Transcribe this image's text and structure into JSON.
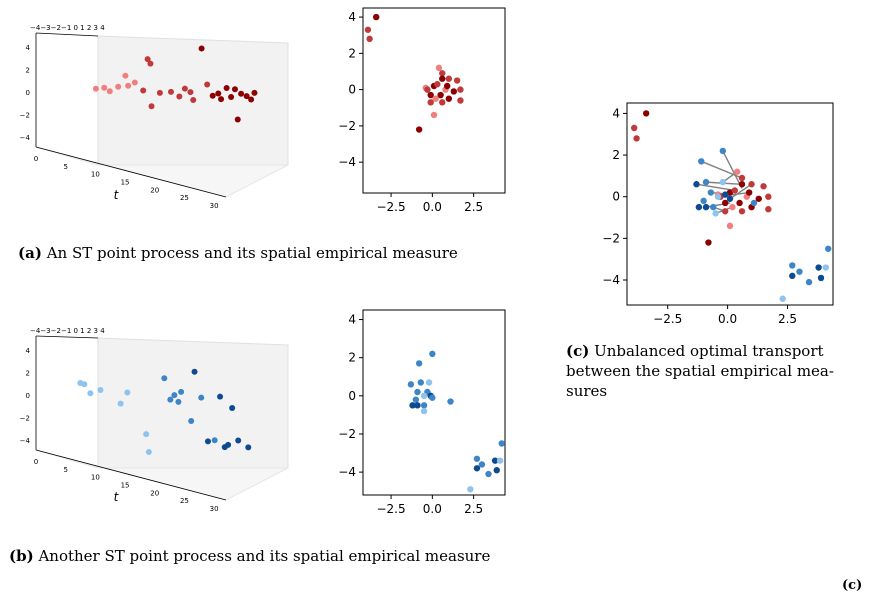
{
  "colors": {
    "red_light": "#f08080",
    "red_mid": "#c0393b",
    "red_dark": "#8b0000",
    "blue_light": "#8ec3ef",
    "blue_mid": "#3e85c6",
    "blue_dark": "#0d4a8f",
    "transport_line": "#808080"
  },
  "captions": {
    "a_tag": "(a)",
    "a_text": "An ST point process and its spatial empirical measure",
    "b_tag": "(b)",
    "b_text": "Another ST point process and its spatial empirical measure",
    "c_tag": "(c)",
    "c_line1": "Unbalanced optimal transport",
    "c_line2": "between the spatial empirical mea-",
    "c_line3": "sures",
    "corner_fragment": "(c)"
  },
  "chart_data": [
    {
      "id": "a3d",
      "type": "scatter",
      "projection": "3d",
      "xlabel": "t",
      "x_ticks": [
        "0",
        "5",
        "10",
        "15",
        "20",
        "25",
        "30"
      ],
      "z_ticks": [
        "4",
        "2",
        "0",
        "−2",
        "−4"
      ],
      "y_tick_row": "−4−3−2−1 0 1 2 3 4",
      "xlim": [
        0,
        32
      ],
      "zlim": [
        -5,
        5
      ],
      "points": [
        {
          "t": 2.5,
          "z": 0.3,
          "c": "red_light"
        },
        {
          "t": 4,
          "z": 0.4,
          "c": "red_light"
        },
        {
          "t": 5,
          "z": 0.1,
          "c": "red_light"
        },
        {
          "t": 6.5,
          "z": 0.5,
          "c": "red_light"
        },
        {
          "t": 7.8,
          "z": 1.5,
          "c": "red_light"
        },
        {
          "t": 8.3,
          "z": 0.6,
          "c": "red_light"
        },
        {
          "t": 9.5,
          "z": 0.9,
          "c": "red_light"
        },
        {
          "t": 11,
          "z": 0.2,
          "c": "red_mid"
        },
        {
          "t": 11.8,
          "z": 3.0,
          "c": "red_mid"
        },
        {
          "t": 12.3,
          "z": 2.6,
          "c": "red_mid"
        },
        {
          "t": 12.5,
          "z": -1.2,
          "c": "red_mid"
        },
        {
          "t": 14,
          "z": 0.0,
          "c": "red_mid"
        },
        {
          "t": 16,
          "z": 0.1,
          "c": "red_mid"
        },
        {
          "t": 17.5,
          "z": -0.3,
          "c": "red_mid"
        },
        {
          "t": 18.5,
          "z": 0.4,
          "c": "red_mid"
        },
        {
          "t": 19.5,
          "z": 0.1,
          "c": "red_mid"
        },
        {
          "t": 20,
          "z": -0.6,
          "c": "red_mid"
        },
        {
          "t": 21.5,
          "z": 4.0,
          "c": "red_dark"
        },
        {
          "t": 22.5,
          "z": 0.8,
          "c": "red_mid"
        },
        {
          "t": 23.5,
          "z": -0.2,
          "c": "red_dark"
        },
        {
          "t": 24.5,
          "z": 0.0,
          "c": "red_dark"
        },
        {
          "t": 25,
          "z": -0.5,
          "c": "red_dark"
        },
        {
          "t": 26,
          "z": 0.5,
          "c": "red_dark"
        },
        {
          "t": 26.8,
          "z": -0.3,
          "c": "red_dark"
        },
        {
          "t": 27.5,
          "z": 0.4,
          "c": "red_dark"
        },
        {
          "t": 28,
          "z": -2.3,
          "c": "red_dark"
        },
        {
          "t": 28.6,
          "z": 0.0,
          "c": "red_dark"
        },
        {
          "t": 29.6,
          "z": -0.2,
          "c": "red_dark"
        },
        {
          "t": 30.4,
          "z": -0.5,
          "c": "red_dark"
        },
        {
          "t": 31,
          "z": 0.1,
          "c": "red_dark"
        }
      ]
    },
    {
      "id": "a2d",
      "type": "scatter",
      "x_ticks": [
        -2.5,
        0.0,
        2.5
      ],
      "y_ticks": [
        4,
        2,
        0,
        -2,
        -4
      ],
      "xlim": [
        -4.2,
        4.4
      ],
      "ylim": [
        -5.7,
        4.5
      ],
      "points": [
        {
          "x": -3.9,
          "y": 3.3,
          "c": "red_mid"
        },
        {
          "x": -3.8,
          "y": 2.8,
          "c": "red_mid"
        },
        {
          "x": -3.4,
          "y": 4.0,
          "c": "red_dark"
        },
        {
          "x": 0.4,
          "y": 1.2,
          "c": "red_light"
        },
        {
          "x": 0.6,
          "y": 0.9,
          "c": "red_mid"
        },
        {
          "x": 0.6,
          "y": 0.6,
          "c": "red_dark"
        },
        {
          "x": -0.4,
          "y": 0.1,
          "c": "red_light"
        },
        {
          "x": -0.3,
          "y": 0.0,
          "c": "red_mid"
        },
        {
          "x": 0.1,
          "y": 0.2,
          "c": "red_dark"
        },
        {
          "x": 0.3,
          "y": 0.3,
          "c": "red_mid"
        },
        {
          "x": 1.0,
          "y": 0.6,
          "c": "red_mid"
        },
        {
          "x": 1.5,
          "y": 0.5,
          "c": "red_mid"
        },
        {
          "x": 0.8,
          "y": 0.0,
          "c": "red_light"
        },
        {
          "x": 1.3,
          "y": -0.1,
          "c": "red_dark"
        },
        {
          "x": 1.7,
          "y": 0.0,
          "c": "red_mid"
        },
        {
          "x": 0.5,
          "y": -0.3,
          "c": "red_dark"
        },
        {
          "x": -0.1,
          "y": -0.3,
          "c": "red_dark"
        },
        {
          "x": -0.1,
          "y": -0.7,
          "c": "red_mid"
        },
        {
          "x": 0.2,
          "y": -0.5,
          "c": "red_light"
        },
        {
          "x": 1.0,
          "y": -0.5,
          "c": "red_dark"
        },
        {
          "x": 0.6,
          "y": -0.7,
          "c": "red_mid"
        },
        {
          "x": 1.7,
          "y": -0.6,
          "c": "red_mid"
        },
        {
          "x": 0.1,
          "y": -1.4,
          "c": "red_light"
        },
        {
          "x": -0.8,
          "y": -2.2,
          "c": "red_dark"
        },
        {
          "x": 0.9,
          "y": 0.2,
          "c": "red_dark"
        }
      ]
    },
    {
      "id": "b3d",
      "type": "scatter",
      "projection": "3d",
      "xlabel": "t",
      "x_ticks": [
        "0",
        "5",
        "10",
        "15",
        "20",
        "25",
        "30"
      ],
      "z_ticks": [
        "4",
        "2",
        "0",
        "−2",
        "−4"
      ],
      "y_tick_row": "−4−3−2−1 0 1 2 3 4",
      "xlim": [
        0,
        32
      ],
      "zlim": [
        -5,
        5
      ],
      "points": [
        {
          "t": 6,
          "z": 1.1,
          "c": "blue_light"
        },
        {
          "t": 6.6,
          "z": 1.0,
          "c": "blue_light"
        },
        {
          "t": 7.5,
          "z": 0.2,
          "c": "blue_light"
        },
        {
          "t": 9,
          "z": 0.5,
          "c": "blue_light"
        },
        {
          "t": 12,
          "z": -0.7,
          "c": "blue_light"
        },
        {
          "t": 13,
          "z": 0.3,
          "c": "blue_light"
        },
        {
          "t": 15.8,
          "z": -3.4,
          "c": "blue_light"
        },
        {
          "t": 16.2,
          "z": -5.0,
          "c": "blue_light"
        },
        {
          "t": 18.5,
          "z": 1.6,
          "c": "blue_mid"
        },
        {
          "t": 19.4,
          "z": -0.3,
          "c": "blue_mid"
        },
        {
          "t": 20,
          "z": 0.1,
          "c": "blue_mid"
        },
        {
          "t": 20.6,
          "z": -0.5,
          "c": "blue_mid"
        },
        {
          "t": 21,
          "z": 0.4,
          "c": "blue_mid"
        },
        {
          "t": 22.5,
          "z": -2.2,
          "c": "blue_mid"
        },
        {
          "t": 23,
          "z": 2.2,
          "c": "blue_dark"
        },
        {
          "t": 24,
          "z": -0.1,
          "c": "blue_mid"
        },
        {
          "t": 25,
          "z": -4.0,
          "c": "blue_dark"
        },
        {
          "t": 26,
          "z": -3.9,
          "c": "blue_mid"
        },
        {
          "t": 26.8,
          "z": 0.0,
          "c": "blue_dark"
        },
        {
          "t": 27.5,
          "z": -4.5,
          "c": "blue_dark"
        },
        {
          "t": 28,
          "z": -4.3,
          "c": "blue_dark"
        },
        {
          "t": 28.6,
          "z": -1.0,
          "c": "blue_dark"
        },
        {
          "t": 29.5,
          "z": -3.9,
          "c": "blue_dark"
        },
        {
          "t": 31,
          "z": -4.5,
          "c": "blue_dark"
        }
      ]
    },
    {
      "id": "b2d",
      "type": "scatter",
      "x_ticks": [
        -2.5,
        0.0,
        2.5
      ],
      "y_ticks": [
        4,
        2,
        0,
        -2,
        -4
      ],
      "xlim": [
        -4.2,
        4.4
      ],
      "ylim": [
        -5.2,
        4.5
      ],
      "points": [
        {
          "x": -0.8,
          "y": 1.7,
          "c": "blue_mid"
        },
        {
          "x": -0.7,
          "y": 0.7,
          "c": "blue_mid"
        },
        {
          "x": -1.3,
          "y": 0.6,
          "c": "blue_mid"
        },
        {
          "x": -0.9,
          "y": 0.2,
          "c": "blue_mid"
        },
        {
          "x": -0.2,
          "y": 0.7,
          "c": "blue_light"
        },
        {
          "x": -0.3,
          "y": 0.2,
          "c": "blue_mid"
        },
        {
          "x": -0.5,
          "y": 0.0,
          "c": "blue_light"
        },
        {
          "x": -1.0,
          "y": -0.2,
          "c": "blue_mid"
        },
        {
          "x": -0.1,
          "y": 0.0,
          "c": "blue_dark"
        },
        {
          "x": 0.0,
          "y": -0.1,
          "c": "blue_mid"
        },
        {
          "x": -1.2,
          "y": -0.5,
          "c": "blue_dark"
        },
        {
          "x": -0.9,
          "y": -0.5,
          "c": "blue_dark"
        },
        {
          "x": -0.5,
          "y": -0.5,
          "c": "blue_mid"
        },
        {
          "x": -0.5,
          "y": -0.8,
          "c": "blue_light"
        },
        {
          "x": 1.1,
          "y": -0.3,
          "c": "blue_mid"
        },
        {
          "x": 0.0,
          "y": 2.2,
          "c": "blue_mid"
        },
        {
          "x": 2.7,
          "y": -3.3,
          "c": "blue_mid"
        },
        {
          "x": 3.0,
          "y": -3.6,
          "c": "blue_mid"
        },
        {
          "x": 2.7,
          "y": -3.8,
          "c": "blue_dark"
        },
        {
          "x": 3.4,
          "y": -4.1,
          "c": "blue_mid"
        },
        {
          "x": 3.8,
          "y": -3.4,
          "c": "blue_dark"
        },
        {
          "x": 3.9,
          "y": -3.9,
          "c": "blue_dark"
        },
        {
          "x": 4.1,
          "y": -3.4,
          "c": "blue_light"
        },
        {
          "x": 4.2,
          "y": -2.5,
          "c": "blue_mid"
        },
        {
          "x": 2.3,
          "y": -4.9,
          "c": "blue_light"
        }
      ]
    },
    {
      "id": "c2d",
      "type": "scatter",
      "x_ticks": [
        -2.5,
        0.0,
        2.5
      ],
      "y_ticks": [
        4,
        2,
        0,
        -2,
        -4
      ],
      "xlim": [
        -4.2,
        4.4
      ],
      "ylim": [
        -5.2,
        4.5
      ],
      "transport_lines": [
        {
          "x1": -0.2,
          "y1": 2.2,
          "x2": 0.6,
          "y2": 0.4
        },
        {
          "x1": -1.1,
          "y1": 1.7,
          "x2": 0.6,
          "y2": 0.9
        },
        {
          "x1": -0.9,
          "y1": 0.7,
          "x2": 0.5,
          "y2": 0.6
        },
        {
          "x1": -1.3,
          "y1": 0.6,
          "x2": 0.3,
          "y2": 0.3
        },
        {
          "x1": -0.2,
          "y1": 0.7,
          "x2": 0.4,
          "y2": 1.2
        },
        {
          "x1": -0.7,
          "y1": 0.2,
          "x2": 0.2,
          "y2": 0.1
        },
        {
          "x1": -0.4,
          "y1": 0.0,
          "x2": 0.9,
          "y2": 0.2
        },
        {
          "x1": 0.1,
          "y1": -0.1,
          "x2": 1.0,
          "y2": 0.6
        },
        {
          "x1": -0.9,
          "y1": -0.5,
          "x2": 0.1,
          "y2": -0.3
        },
        {
          "x1": -0.5,
          "y1": -0.8,
          "x2": 0.2,
          "y2": -0.5
        },
        {
          "x1": -0.6,
          "y1": -0.5,
          "x2": -0.1,
          "y2": -0.7
        },
        {
          "x1": 1.1,
          "y1": -0.3,
          "x2": 1.3,
          "y2": -0.1
        }
      ],
      "points": [
        {
          "x": -3.9,
          "y": 3.3,
          "c": "red_mid"
        },
        {
          "x": -3.8,
          "y": 2.8,
          "c": "red_mid"
        },
        {
          "x": -3.4,
          "y": 4.0,
          "c": "red_dark"
        },
        {
          "x": 0.4,
          "y": 1.2,
          "c": "red_light"
        },
        {
          "x": 0.6,
          "y": 0.9,
          "c": "red_mid"
        },
        {
          "x": 0.6,
          "y": 0.6,
          "c": "red_dark"
        },
        {
          "x": -0.4,
          "y": 0.1,
          "c": "red_light"
        },
        {
          "x": -0.3,
          "y": 0.0,
          "c": "red_mid"
        },
        {
          "x": 0.1,
          "y": 0.2,
          "c": "red_dark"
        },
        {
          "x": 0.3,
          "y": 0.3,
          "c": "red_mid"
        },
        {
          "x": 1.0,
          "y": 0.6,
          "c": "red_mid"
        },
        {
          "x": 1.5,
          "y": 0.5,
          "c": "red_mid"
        },
        {
          "x": 0.8,
          "y": 0.0,
          "c": "red_light"
        },
        {
          "x": 1.3,
          "y": -0.1,
          "c": "red_dark"
        },
        {
          "x": 1.7,
          "y": 0.0,
          "c": "red_mid"
        },
        {
          "x": 0.5,
          "y": -0.3,
          "c": "red_dark"
        },
        {
          "x": -0.1,
          "y": -0.3,
          "c": "red_dark"
        },
        {
          "x": -0.1,
          "y": -0.7,
          "c": "red_mid"
        },
        {
          "x": 0.2,
          "y": -0.5,
          "c": "red_light"
        },
        {
          "x": 1.0,
          "y": -0.5,
          "c": "red_dark"
        },
        {
          "x": 0.6,
          "y": -0.7,
          "c": "red_mid"
        },
        {
          "x": 1.7,
          "y": -0.6,
          "c": "red_mid"
        },
        {
          "x": 0.1,
          "y": -1.4,
          "c": "red_light"
        },
        {
          "x": -0.8,
          "y": -2.2,
          "c": "red_dark"
        },
        {
          "x": 0.9,
          "y": 0.2,
          "c": "red_dark"
        },
        {
          "x": -0.2,
          "y": 2.2,
          "c": "blue_mid"
        },
        {
          "x": -1.1,
          "y": 1.7,
          "c": "blue_mid"
        },
        {
          "x": -0.9,
          "y": 0.7,
          "c": "blue_mid"
        },
        {
          "x": -1.3,
          "y": 0.6,
          "c": "blue_dark"
        },
        {
          "x": -0.2,
          "y": 0.7,
          "c": "blue_light"
        },
        {
          "x": -0.7,
          "y": 0.2,
          "c": "blue_mid"
        },
        {
          "x": -0.4,
          "y": 0.0,
          "c": "blue_light"
        },
        {
          "x": -1.0,
          "y": -0.2,
          "c": "blue_mid"
        },
        {
          "x": 0.1,
          "y": -0.1,
          "c": "blue_dark"
        },
        {
          "x": -0.1,
          "y": 0.1,
          "c": "blue_dark"
        },
        {
          "x": -1.2,
          "y": -0.5,
          "c": "blue_dark"
        },
        {
          "x": -0.9,
          "y": -0.5,
          "c": "blue_dark"
        },
        {
          "x": -0.6,
          "y": -0.5,
          "c": "blue_mid"
        },
        {
          "x": -0.5,
          "y": -0.8,
          "c": "blue_light"
        },
        {
          "x": 1.1,
          "y": -0.3,
          "c": "blue_mid"
        },
        {
          "x": 2.7,
          "y": -3.3,
          "c": "blue_mid"
        },
        {
          "x": 3.0,
          "y": -3.6,
          "c": "blue_mid"
        },
        {
          "x": 2.7,
          "y": -3.8,
          "c": "blue_dark"
        },
        {
          "x": 3.4,
          "y": -4.1,
          "c": "blue_mid"
        },
        {
          "x": 3.8,
          "y": -3.4,
          "c": "blue_dark"
        },
        {
          "x": 3.9,
          "y": -3.9,
          "c": "blue_dark"
        },
        {
          "x": 4.1,
          "y": -3.4,
          "c": "blue_light"
        },
        {
          "x": 4.2,
          "y": -2.5,
          "c": "blue_mid"
        },
        {
          "x": 2.3,
          "y": -4.9,
          "c": "blue_light"
        }
      ]
    }
  ]
}
